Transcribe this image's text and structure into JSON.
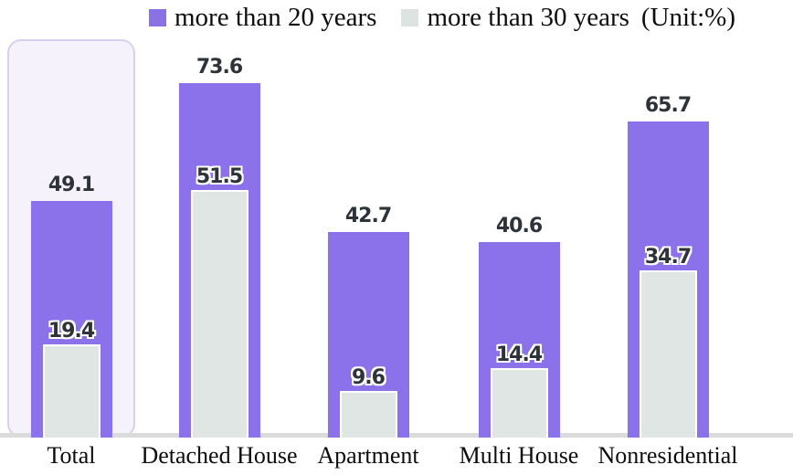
{
  "legend": {
    "items": [
      {
        "label": "more than 20 years",
        "swatch": "purple-square",
        "color": "#8b71ea"
      },
      {
        "label": "more than 30 years",
        "swatch": "gray-square",
        "color": "#dfe6e3"
      }
    ],
    "unit": "(Unit:%)"
  },
  "chart_data": {
    "type": "bar",
    "title": "",
    "xlabel": "",
    "ylabel": "",
    "unit": "%",
    "categories": [
      "Total",
      "Detached House",
      "Apartment",
      "Multi House",
      "Nonresidential"
    ],
    "series": [
      {
        "name": "more than 20 years",
        "color": "#8b71ea",
        "values": [
          49.1,
          73.6,
          42.7,
          40.6,
          65.7
        ]
      },
      {
        "name": "more than 30 years",
        "color": "#dfe6e3",
        "values": [
          19.4,
          51.5,
          9.6,
          14.4,
          34.7
        ]
      }
    ],
    "ylim": [
      0,
      85
    ],
    "grid": false,
    "legend_position": "top",
    "style_notes": "30-year bar nested inside 20-year bar; Total category highlighted with lavender rounded box; value labels above bar tops; no y-axis shown",
    "highlighted_category": "Total",
    "colors": {
      "bar_20y": "#8b71ea",
      "bar_30y": "#dfe6e3",
      "highlight_bg": "#f6f2fc",
      "highlight_border": "#d9d0ef",
      "baseline": "#dbdbdb",
      "value_label": "#2d3338"
    }
  }
}
